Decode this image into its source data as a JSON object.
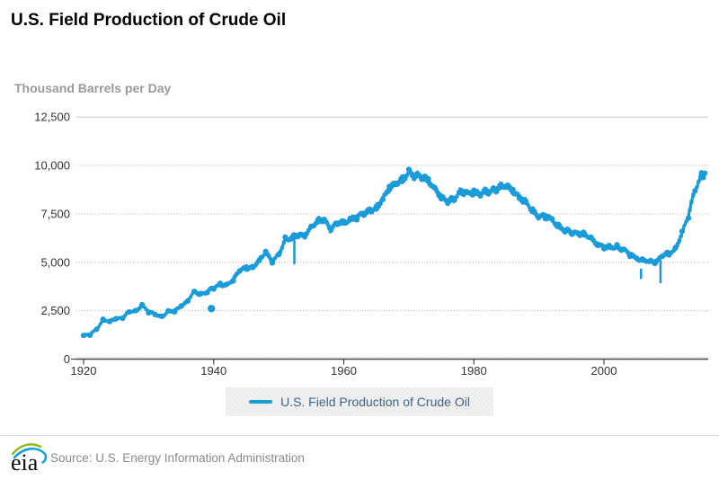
{
  "header": {
    "title": "U.S. Field Production of Crude Oil",
    "units_label": "Thousand Barrels per Day"
  },
  "legend": {
    "label": "U.S. Field Production of Crude Oil"
  },
  "footer": {
    "logo_text": "eia",
    "source": "Source: U.S. Energy Information Administration"
  },
  "colors": {
    "series": "#1b9bd8",
    "legend_text": "#3f648b",
    "legend_bg": "#ebebeb",
    "axis": "#444444",
    "tick_text": "#333333",
    "grid_dotted": "#b3b3b3",
    "grid_solid": "#c8c8c8",
    "subtitle_text": "#9a9a9a",
    "source_text": "#8a8a8a",
    "logo_green": "#8db816",
    "logo_blue": "#00a0dc"
  },
  "chart_data": {
    "type": "line",
    "title": "U.S. Field Production of Crude Oil",
    "ylabel": "Thousand Barrels per Day",
    "xlabel": "",
    "grid": "horizontal-dotted",
    "legend_position": "bottom-center",
    "xlim": [
      1918.8,
      2016.2
    ],
    "ylim": [
      0,
      12500
    ],
    "x_ticks": [
      1920,
      1940,
      1960,
      1980,
      2000
    ],
    "x_tick_labels": [
      "1920",
      "1940",
      "1960",
      "1980",
      "2000"
    ],
    "y_ticks": [
      0,
      2500,
      5000,
      7500,
      10000,
      12500
    ],
    "y_tick_labels": [
      "0",
      "2,500",
      "5,000",
      "7,500",
      "10,000",
      "12,500"
    ],
    "series": [
      {
        "name": "U.S. Field Production of Crude Oil",
        "color": "#1b9bd8",
        "x": [
          1920,
          1921,
          1922,
          1923,
          1924,
          1925,
          1926,
          1927,
          1928,
          1929,
          1930,
          1931,
          1932,
          1933,
          1934,
          1935,
          1936,
          1937,
          1938,
          1939,
          1940,
          1941,
          1942,
          1943,
          1944,
          1945,
          1946,
          1947,
          1948,
          1949,
          1950,
          1951,
          1952,
          1953,
          1954,
          1955,
          1956,
          1957,
          1958,
          1959,
          1960,
          1961,
          1962,
          1963,
          1964,
          1965,
          1966,
          1967,
          1968,
          1969,
          1970,
          1971,
          1972,
          1973,
          1974,
          1975,
          1976,
          1977,
          1978,
          1979,
          1980,
          1981,
          1982,
          1983,
          1984,
          1985,
          1986,
          1987,
          1988,
          1989,
          1990,
          1991,
          1992,
          1993,
          1994,
          1995,
          1996,
          1997,
          1998,
          1999,
          2000,
          2001,
          2002,
          2003,
          2004,
          2005,
          2006,
          2007,
          2008,
          2009,
          2010,
          2011,
          2012,
          2013,
          2014,
          2015,
          2015.5
        ],
        "values": [
          1221,
          1294,
          1527,
          2010,
          1956,
          2092,
          2114,
          2469,
          2463,
          2760,
          2460,
          2332,
          2145,
          2481,
          2488,
          2730,
          3001,
          3500,
          3327,
          3464,
          3707,
          3842,
          3796,
          4125,
          4584,
          4695,
          4750,
          5088,
          5520,
          5046,
          5407,
          6158,
          6256,
          6458,
          6342,
          6807,
          7151,
          7170,
          6710,
          7054,
          7035,
          7183,
          7332,
          7542,
          7614,
          7804,
          8295,
          8810,
          9096,
          9238,
          9637,
          9463,
          9441,
          9208,
          8774,
          8375,
          8132,
          8245,
          8707,
          8552,
          8597,
          8572,
          8649,
          8688,
          8879,
          8971,
          8680,
          8349,
          8140,
          7613,
          7355,
          7417,
          7171,
          6847,
          6662,
          6560,
          6465,
          6452,
          6252,
          5881,
          5822,
          5801,
          5746,
          5681,
          5419,
          5178,
          5102,
          5064,
          5000,
          5353,
          5475,
          5653,
          6497,
          7468,
          8759,
          9431,
          9600
        ]
      }
    ],
    "outliers": [
      {
        "x": 1939.65,
        "value": 2610,
        "style": "dot"
      },
      {
        "x": 1952.4,
        "value": 4950,
        "spike_from": 6150,
        "style": "spike"
      },
      {
        "x": 2005.7,
        "value": 4190,
        "spike_from": 4620,
        "style": "spike"
      },
      {
        "x": 2008.7,
        "value": 3970,
        "spike_from": 5060,
        "style": "spike"
      }
    ]
  }
}
